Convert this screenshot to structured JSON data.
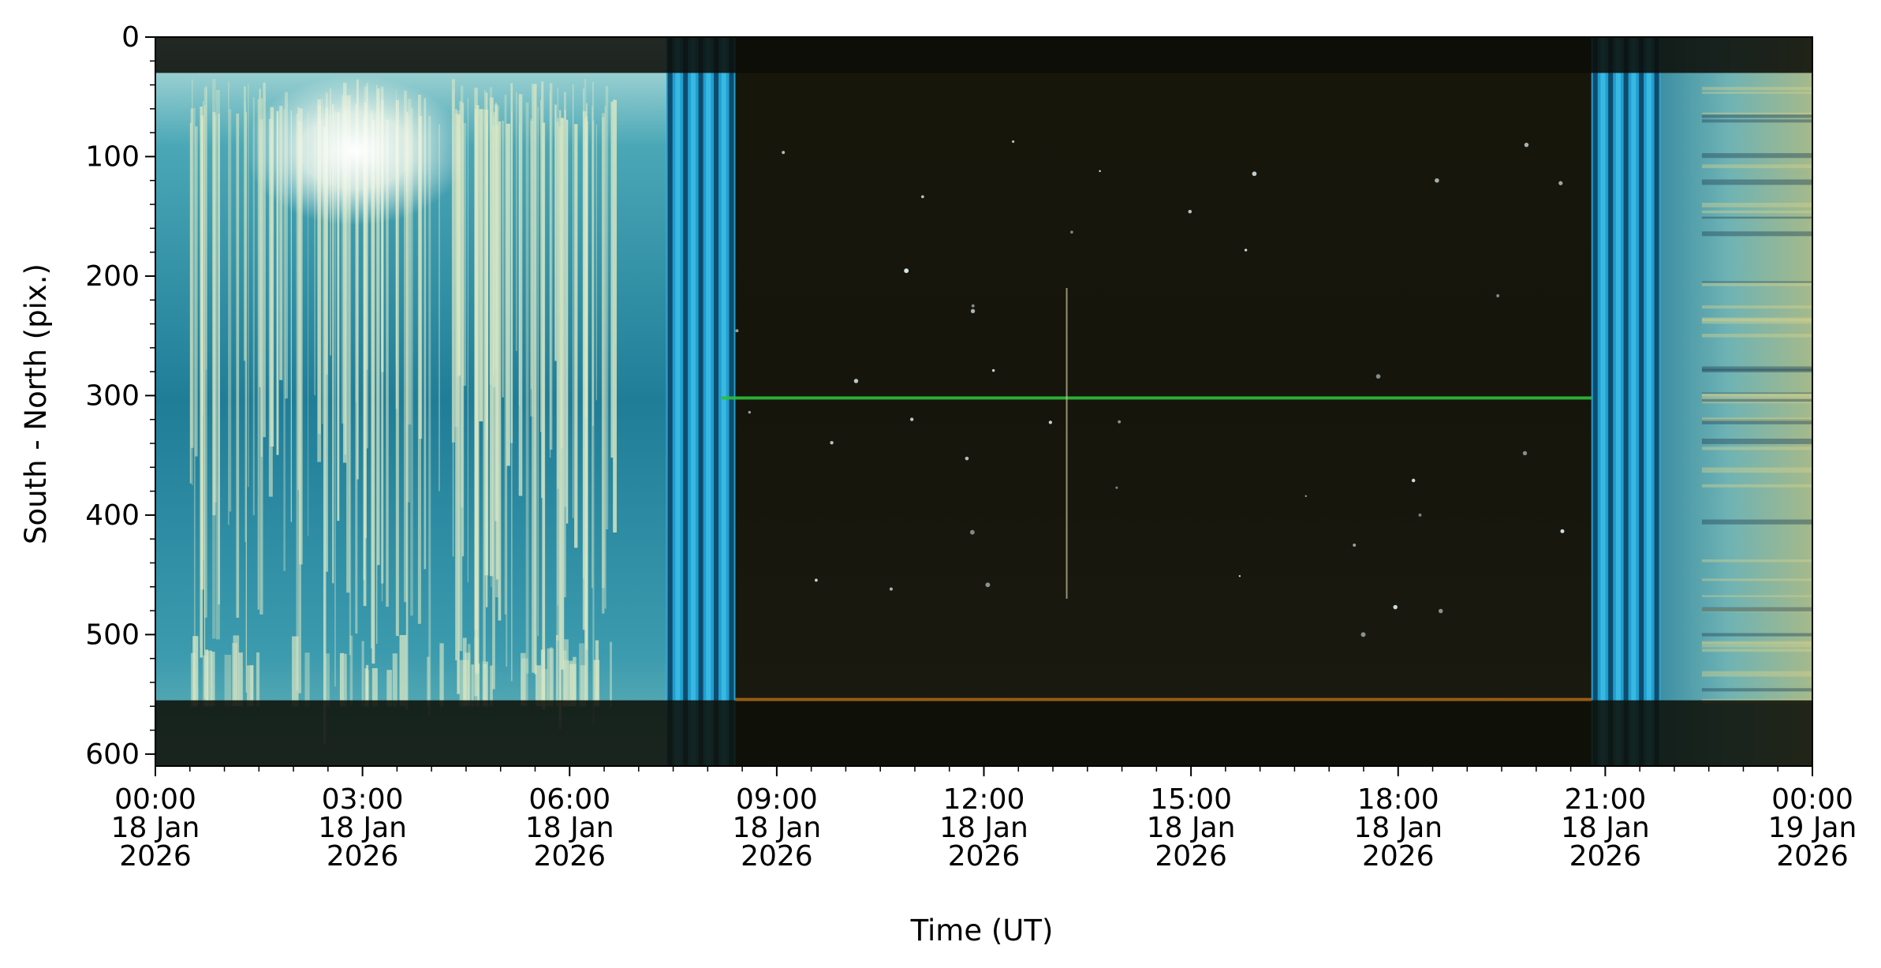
{
  "chart_data": {
    "type": "heatmap",
    "title": "",
    "xlabel": "Time (UT)",
    "ylabel": "South - North (pix.)",
    "xlim": [
      "2026-01-18 00:00",
      "2026-01-19 00:00"
    ],
    "ylim": [
      610,
      0
    ],
    "y_inverted": true,
    "grid": false,
    "legend": "none",
    "x_ticks": [
      {
        "value": "2026-01-18 00:00",
        "label": [
          "00:00",
          "18 Jan",
          "2026"
        ]
      },
      {
        "value": "2026-01-18 03:00",
        "label": [
          "03:00",
          "18 Jan",
          "2026"
        ]
      },
      {
        "value": "2026-01-18 06:00",
        "label": [
          "06:00",
          "18 Jan",
          "2026"
        ]
      },
      {
        "value": "2026-01-18 09:00",
        "label": [
          "09:00",
          "18 Jan",
          "2026"
        ]
      },
      {
        "value": "2026-01-18 12:00",
        "label": [
          "12:00",
          "18 Jan",
          "2026"
        ]
      },
      {
        "value": "2026-01-18 15:00",
        "label": [
          "15:00",
          "18 Jan",
          "2026"
        ]
      },
      {
        "value": "2026-01-18 18:00",
        "label": [
          "18:00",
          "18 Jan",
          "2026"
        ]
      },
      {
        "value": "2026-01-18 21:00",
        "label": [
          "21:00",
          "18 Jan",
          "2026"
        ]
      },
      {
        "value": "2026-01-19 00:00",
        "label": [
          "00:00",
          "19 Jan",
          "2026"
        ]
      }
    ],
    "y_ticks": [
      0,
      100,
      200,
      300,
      400,
      500,
      600
    ],
    "bands": [
      {
        "start_hour": 0.0,
        "end_hour": 7.4,
        "color": "#2f8ea6",
        "name": "daylight-sky"
      },
      {
        "start_hour": 7.4,
        "end_hour": 8.4,
        "color": "#1f9fd0",
        "name": "dusk"
      },
      {
        "start_hour": 8.4,
        "end_hour": 20.8,
        "color": "#15140b",
        "name": "night"
      },
      {
        "start_hour": 20.8,
        "end_hour": 21.8,
        "color": "#1f9fd0",
        "name": "dawn"
      },
      {
        "start_hour": 21.8,
        "end_hour": 24.0,
        "color": "#5aa6a8",
        "name": "daylight-sky-2"
      }
    ],
    "features": [
      {
        "type": "horizontal-line",
        "y": 302,
        "start_hour": 8.2,
        "end_hour": 20.8,
        "color": "#2fbf3a",
        "name": "green-streak"
      },
      {
        "type": "vertical-line",
        "x_hour": 13.2,
        "y_start": 210,
        "y_end": 470,
        "color": "#c8c8a0",
        "name": "vertical-streak"
      },
      {
        "type": "horizontal-band",
        "y_start": 0,
        "y_end": 30,
        "color": "#0c0e08",
        "name": "top-mask"
      },
      {
        "type": "horizontal-band",
        "y_start": 555,
        "y_end": 610,
        "color": "#0e1008",
        "name": "bottom-mask"
      }
    ],
    "colors": {
      "day_sky": "#2f8ea6",
      "cloud": "#d8e6c4",
      "twilight": "#1f9fd0",
      "night": "#15140b",
      "green_line": "#2fbf3a",
      "horizon_orange": "#b86a1c"
    }
  }
}
